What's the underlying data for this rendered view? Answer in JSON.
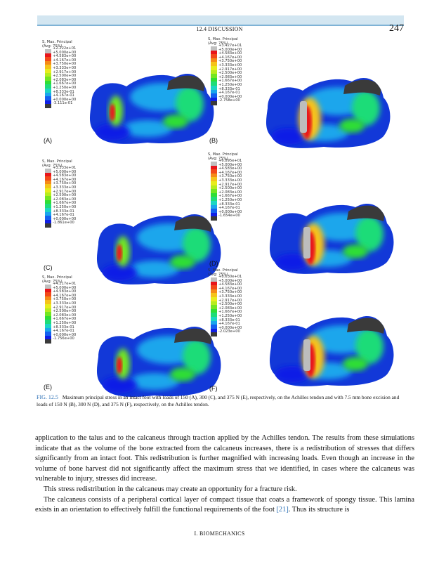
{
  "header": {
    "running_head": "12.4 DISCUSSION",
    "page_number": "247"
  },
  "legend_common": {
    "title": "S, Max. Principal",
    "subtitle": "(Avg: 75%)",
    "colors": [
      "#c0c0c0",
      "#e8151b",
      "#f2491a",
      "#f58a18",
      "#f5c31a",
      "#e8ec1d",
      "#b6ec1e",
      "#73e621",
      "#2fde35",
      "#1fdc78",
      "#1cd6c3",
      "#1aa6ec",
      "#1461f0",
      "#101fe6",
      "#3a3a3a"
    ],
    "steps": [
      "+5.000e+00",
      "+4.583e+00",
      "+4.167e+00",
      "+3.750e+00",
      "+3.333e+00",
      "+2.917e+00",
      "+2.500e+00",
      "+2.083e+00",
      "+1.667e+00",
      "+1.250e+00",
      "+8.333e-01",
      "+4.167e-01",
      "+0.000e+00"
    ]
  },
  "panels": [
    {
      "label": "(A)",
      "max": "+2.222e+01",
      "min": "-3.111e-01"
    },
    {
      "label": "(B)",
      "max": "+3.427e+01",
      "min": "-2.758e+00"
    },
    {
      "label": "(C)",
      "max": "+3.333e+01",
      "min": "-1.861e+00"
    },
    {
      "label": "(D)",
      "max": "+6.895e+01",
      "min": "-1.654e+00"
    },
    {
      "label": "(E)",
      "max": "+4.217e+01",
      "min": "-1.756e+00"
    },
    {
      "label": "(F)",
      "max": "+8.630e+01",
      "min": "-2.023e+00"
    }
  ],
  "caption": {
    "fig_label": "FIG. 12.5",
    "text": "Maximum principal stress in an intact foot with loads of 150 (A), 300 (C), and 375 N (E), respectively, on the Achilles tendon and with 7.5 mm bone excision and loads of 150 N (B), 300 N (D), and 375 N (F), respectively, on the Achilles tendon."
  },
  "body": {
    "p1": "application to the talus and to the calcaneus through traction applied by the Achilles tendon. The results from these simulations indicate that as the volume of the bone extracted from the calcaneus increases, there is a redistribution of stresses that differs significantly from an intact foot. This redistribution is further magnified with increasing loads. Even though an increase in the volume of bone harvest did not significantly affect the maximum stress that we identified, in cases where the calcaneus was vulnerable to injury, stresses did increase.",
    "p2": "This stress redistribution in the calcaneus may create an opportunity for a fracture risk.",
    "p3_a": "The calcaneus consists of a peripheral cortical layer of compact tissue that coats a framework of spongy tissue. This lamina exists in an orientation to effectively fulfill the functional requirements of the foot ",
    "p3_ref": "[21]",
    "p3_b": ". Thus its structure is"
  },
  "footer": {
    "text": "I. BIOMECHANICS"
  }
}
